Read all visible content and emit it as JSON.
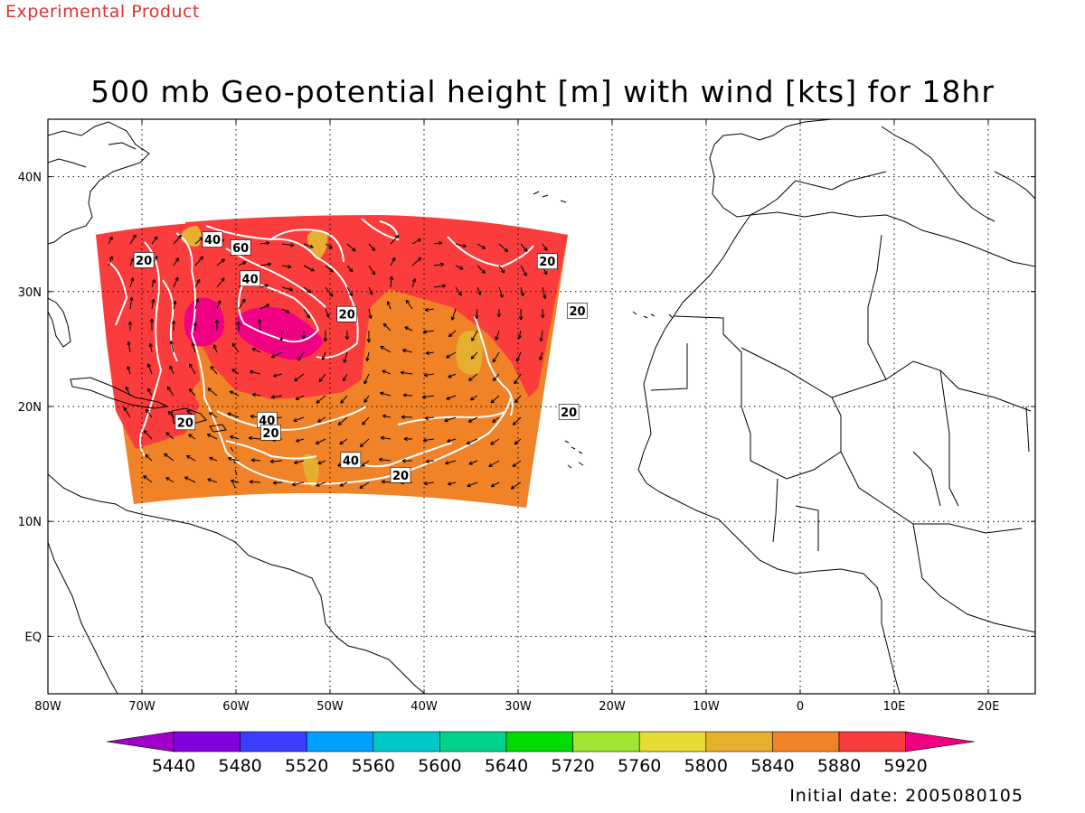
{
  "header": {
    "product_note": "Experimental Product",
    "title": "500 mb Geo-potential height [m] with wind [kts] for 18hr"
  },
  "footer": {
    "initial_date": "Initial date: 2005080105"
  },
  "map": {
    "lon_range": [
      -80,
      25
    ],
    "lat_range": [
      -5,
      45
    ],
    "lon_ticks": [
      {
        "value": -80,
        "label": "80W"
      },
      {
        "value": -70,
        "label": "70W"
      },
      {
        "value": -60,
        "label": "60W"
      },
      {
        "value": -50,
        "label": "50W"
      },
      {
        "value": -40,
        "label": "40W"
      },
      {
        "value": -30,
        "label": "30W"
      },
      {
        "value": -20,
        "label": "20W"
      },
      {
        "value": -10,
        "label": "10W"
      },
      {
        "value": 0,
        "label": "0"
      },
      {
        "value": 10,
        "label": "10E"
      },
      {
        "value": 20,
        "label": "20E"
      }
    ],
    "lat_ticks": [
      {
        "value": 0,
        "label": "EQ"
      },
      {
        "value": 10,
        "label": "10N"
      },
      {
        "value": 20,
        "label": "20N"
      },
      {
        "value": 30,
        "label": "30N"
      },
      {
        "value": 40,
        "label": "40N"
      }
    ],
    "grid": "dotted"
  },
  "colorbar": {
    "labels": [
      "5440",
      "5480",
      "5520",
      "5560",
      "5600",
      "5640",
      "5720",
      "5760",
      "5800",
      "5840",
      "5880",
      "5920"
    ],
    "colors": [
      "#a000c8",
      "#8200dc",
      "#3c3cff",
      "#00a0ff",
      "#00c8c8",
      "#00d28c",
      "#00dc00",
      "#a0e632",
      "#e6dc32",
      "#e6af2d",
      "#f08228",
      "#fa3c3c",
      "#f00082"
    ]
  },
  "isotach_labels": [
    {
      "text": "40",
      "lon": -62.5,
      "lat": 34.5
    },
    {
      "text": "60",
      "lon": -59.5,
      "lat": 33.8
    },
    {
      "text": "20",
      "lon": -69.8,
      "lat": 32.7
    },
    {
      "text": "40",
      "lon": -58.5,
      "lat": 31.1
    },
    {
      "text": "20",
      "lon": -48.2,
      "lat": 28.0
    },
    {
      "text": "20",
      "lon": -26.9,
      "lat": 32.6
    },
    {
      "text": "20",
      "lon": -23.7,
      "lat": 28.3
    },
    {
      "text": "20",
      "lon": -65.4,
      "lat": 18.6
    },
    {
      "text": "40",
      "lon": -56.7,
      "lat": 18.8
    },
    {
      "text": "20",
      "lon": -56.3,
      "lat": 17.7
    },
    {
      "text": "20",
      "lon": -24.6,
      "lat": 19.5
    },
    {
      "text": "40",
      "lon": -47.8,
      "lat": 15.3
    },
    {
      "text": "20",
      "lon": -42.5,
      "lat": 14.0
    }
  ]
}
